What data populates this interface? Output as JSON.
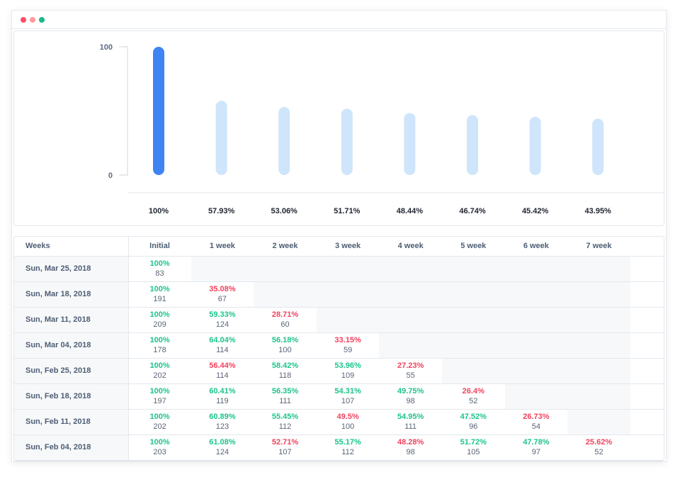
{
  "window": {
    "controls": [
      {
        "name": "close",
        "color": "#ff4d6a"
      },
      {
        "name": "minimize",
        "color": "#ff9a9e"
      },
      {
        "name": "maximize",
        "color": "#19b884"
      }
    ]
  },
  "colors": {
    "primary_bar": "#3f84f3",
    "secondary_bar": "#cfe5fb",
    "positive": "#1cc48a",
    "negative": "#f2415e"
  },
  "chart_data": {
    "type": "bar",
    "categories": [
      "Initial",
      "1 week",
      "2 week",
      "3 week",
      "4 week",
      "5 week",
      "6 week",
      "7 week"
    ],
    "values": [
      100,
      57.93,
      53.06,
      51.71,
      48.44,
      46.74,
      45.42,
      43.95
    ],
    "labels": [
      "100%",
      "57.93%",
      "53.06%",
      "51.71%",
      "48.44%",
      "46.74%",
      "45.42%",
      "43.95%"
    ],
    "y_ticks": [
      "0",
      "100"
    ],
    "ylim": [
      0,
      100
    ]
  },
  "table": {
    "headers": [
      "Weeks",
      "Initial",
      "1 week",
      "2 week",
      "3 week",
      "4 week",
      "5 week",
      "6 week",
      "7 week"
    ],
    "rows": [
      {
        "label": "Sun, Mar 25, 2018",
        "cells": [
          {
            "pct": "100%",
            "count": "83",
            "status": "g"
          }
        ]
      },
      {
        "label": "Sun, Mar 18, 2018",
        "cells": [
          {
            "pct": "100%",
            "count": "191",
            "status": "g"
          },
          {
            "pct": "35.08%",
            "count": "67",
            "status": "r"
          }
        ]
      },
      {
        "label": "Sun, Mar 11, 2018",
        "cells": [
          {
            "pct": "100%",
            "count": "209",
            "status": "g"
          },
          {
            "pct": "59.33%",
            "count": "124",
            "status": "g"
          },
          {
            "pct": "28.71%",
            "count": "60",
            "status": "r"
          }
        ]
      },
      {
        "label": "Sun, Mar 04, 2018",
        "cells": [
          {
            "pct": "100%",
            "count": "178",
            "status": "g"
          },
          {
            "pct": "64.04%",
            "count": "114",
            "status": "g"
          },
          {
            "pct": "56.18%",
            "count": "100",
            "status": "g"
          },
          {
            "pct": "33.15%",
            "count": "59",
            "status": "r"
          }
        ]
      },
      {
        "label": "Sun, Feb 25, 2018",
        "cells": [
          {
            "pct": "100%",
            "count": "202",
            "status": "g"
          },
          {
            "pct": "56.44%",
            "count": "114",
            "status": "r"
          },
          {
            "pct": "58.42%",
            "count": "118",
            "status": "g"
          },
          {
            "pct": "53.96%",
            "count": "109",
            "status": "g"
          },
          {
            "pct": "27.23%",
            "count": "55",
            "status": "r"
          }
        ]
      },
      {
        "label": "Sun, Feb 18, 2018",
        "cells": [
          {
            "pct": "100%",
            "count": "197",
            "status": "g"
          },
          {
            "pct": "60.41%",
            "count": "119",
            "status": "g"
          },
          {
            "pct": "56.35%",
            "count": "111",
            "status": "g"
          },
          {
            "pct": "54.31%",
            "count": "107",
            "status": "g"
          },
          {
            "pct": "49.75%",
            "count": "98",
            "status": "g"
          },
          {
            "pct": "26.4%",
            "count": "52",
            "status": "r"
          }
        ]
      },
      {
        "label": "Sun, Feb 11, 2018",
        "cells": [
          {
            "pct": "100%",
            "count": "202",
            "status": "g"
          },
          {
            "pct": "60.89%",
            "count": "123",
            "status": "g"
          },
          {
            "pct": "55.45%",
            "count": "112",
            "status": "g"
          },
          {
            "pct": "49.5%",
            "count": "100",
            "status": "r"
          },
          {
            "pct": "54.95%",
            "count": "111",
            "status": "g"
          },
          {
            "pct": "47.52%",
            "count": "96",
            "status": "g"
          },
          {
            "pct": "26.73%",
            "count": "54",
            "status": "r"
          }
        ]
      },
      {
        "label": "Sun, Feb 04, 2018",
        "cells": [
          {
            "pct": "100%",
            "count": "203",
            "status": "g"
          },
          {
            "pct": "61.08%",
            "count": "124",
            "status": "g"
          },
          {
            "pct": "52.71%",
            "count": "107",
            "status": "r"
          },
          {
            "pct": "55.17%",
            "count": "112",
            "status": "g"
          },
          {
            "pct": "48.28%",
            "count": "98",
            "status": "r"
          },
          {
            "pct": "51.72%",
            "count": "105",
            "status": "g"
          },
          {
            "pct": "47.78%",
            "count": "97",
            "status": "g"
          },
          {
            "pct": "25.62%",
            "count": "52",
            "status": "r"
          }
        ]
      }
    ]
  }
}
